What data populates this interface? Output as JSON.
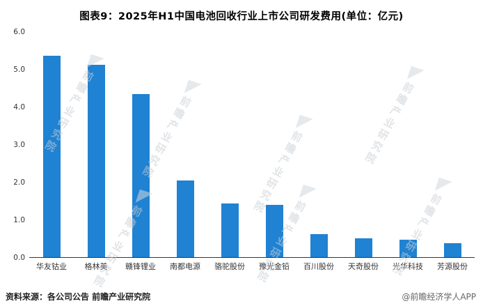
{
  "title": "图表9：2025年H1中国电池回收行业上市公司研发费用(单位：亿元)",
  "chart_data": {
    "type": "bar",
    "title": "图表9：2025年H1中国电池回收行业上市公司研发费用(单位：亿元)",
    "categories": [
      "华友钴业",
      "格林美",
      "赣锋锂业",
      "南都电源",
      "骆驼股份",
      "豫光金铅",
      "百川股份",
      "天奇股份",
      "光华科技",
      "芳源股份"
    ],
    "values": [
      5.37,
      5.12,
      4.35,
      2.05,
      1.43,
      1.4,
      0.62,
      0.51,
      0.47,
      0.37
    ],
    "xlabel": "",
    "ylabel": "",
    "ylim": [
      0,
      6
    ],
    "yticks": [
      "6.0",
      "5.0",
      "4.0",
      "3.0",
      "2.0",
      "1.0",
      "0.0"
    ],
    "grid": false,
    "legend": "none",
    "bar_color": "#1f82d2"
  },
  "footer": {
    "source": "资料来源：各公司公告 前瞻产业研究院",
    "credit": "@前瞻经济学人APP"
  },
  "watermark": {
    "text": "前瞻产业研究院",
    "icon_name": "qianzhan-logo-icon",
    "icon_glyph": "◤"
  }
}
